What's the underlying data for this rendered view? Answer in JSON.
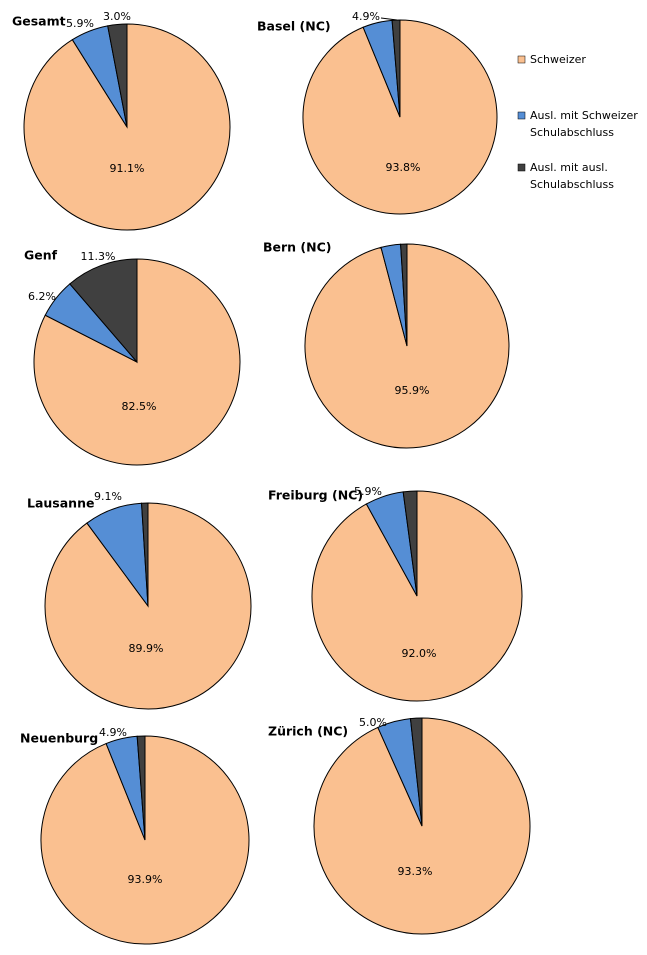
{
  "legend": {
    "labels": [
      "Schweizer",
      "Ausl. mit Schweizer Schulabschluss",
      "Ausl. mit ausl. Schulabschluss"
    ],
    "colors": [
      "#fac090",
      "#558ed5",
      "#404040"
    ]
  },
  "chart_data": [
    {
      "type": "pie",
      "title": "Gesamt",
      "values": [
        91.1,
        5.9,
        3.0
      ],
      "value_labels": [
        "91.1%",
        "5.9%",
        "3.0%"
      ]
    },
    {
      "type": "pie",
      "title": "Basel (NC)",
      "values": [
        93.8,
        4.9,
        1.3
      ],
      "value_labels": [
        "93.8%",
        "4.9%",
        null
      ]
    },
    {
      "type": "pie",
      "title": "Genf",
      "values": [
        82.5,
        6.2,
        11.3
      ],
      "value_labels": [
        "82.5%",
        "6.2%",
        "11.3%"
      ]
    },
    {
      "type": "pie",
      "title": "Bern (NC)",
      "values": [
        95.9,
        3.1,
        1.0
      ],
      "value_labels": [
        "95.9%",
        null,
        null
      ]
    },
    {
      "type": "pie",
      "title": "Lausanne",
      "values": [
        89.9,
        9.1,
        1.0
      ],
      "value_labels": [
        "89.9%",
        "9.1%",
        null
      ]
    },
    {
      "type": "pie",
      "title": "Freiburg (NC)",
      "values": [
        92.0,
        5.9,
        2.1
      ],
      "value_labels": [
        "92.0%",
        "5.9%",
        null
      ]
    },
    {
      "type": "pie",
      "title": "Neuenburg",
      "values": [
        93.9,
        4.9,
        1.2
      ],
      "value_labels": [
        "93.9%",
        "4.9%",
        null
      ]
    },
    {
      "type": "pie",
      "title": "Zürich (NC)",
      "values": [
        93.3,
        5.0,
        1.7
      ],
      "value_labels": [
        "93.3%",
        "5.0%",
        null
      ]
    }
  ]
}
